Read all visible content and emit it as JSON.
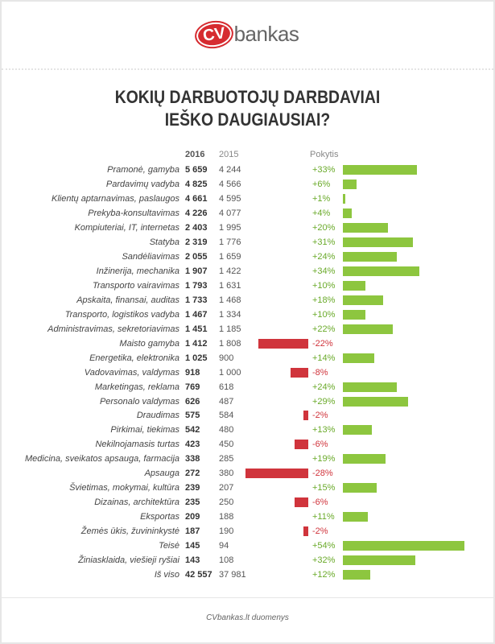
{
  "logo": {
    "mark": "CV",
    "text": "bankas"
  },
  "title_lines": [
    "KOKIŲ DARBUOTOJŲ DARBDAVIAI",
    "IEŠKO DAUGIAUSIAI?"
  ],
  "footer": "CVbankas.lt duomenys",
  "colors": {
    "positive": "#8dc63f",
    "negative": "#d0343c",
    "pos_text": "#6aaa2a",
    "neg_text": "#d0343c"
  },
  "chart_data": {
    "type": "table",
    "title": "KOKIŲ DARBUOTOJŲ DARBDAVIAI IEŠKO DAUGIAUSIAI?",
    "columns": [
      "2016",
      "2015",
      "Pokytis"
    ],
    "rows": [
      {
        "label": "Pramonė, gamyba",
        "v2016": "5 659",
        "v2015": "4 244",
        "change": 33
      },
      {
        "label": "Pardavimų vadyba",
        "v2016": "4 825",
        "v2015": "4 566",
        "change": 6
      },
      {
        "label": "Klientų aptarnavimas, paslaugos",
        "v2016": "4 661",
        "v2015": "4 595",
        "change": 1
      },
      {
        "label": "Prekyba-konsultavimas",
        "v2016": "4 226",
        "v2015": "4 077",
        "change": 4
      },
      {
        "label": "Kompiuteriai, IT, internetas",
        "v2016": "2 403",
        "v2015": "1 995",
        "change": 20
      },
      {
        "label": "Statyba",
        "v2016": "2 319",
        "v2015": "1 776",
        "change": 31
      },
      {
        "label": "Sandėliavimas",
        "v2016": "2 055",
        "v2015": "1 659",
        "change": 24
      },
      {
        "label": "Inžinerija, mechanika",
        "v2016": "1 907",
        "v2015": "1 422",
        "change": 34
      },
      {
        "label": "Transporto vairavimas",
        "v2016": "1 793",
        "v2015": "1 631",
        "change": 10
      },
      {
        "label": "Apskaita, finansai, auditas",
        "v2016": "1 733",
        "v2015": "1 468",
        "change": 18
      },
      {
        "label": "Transporto, logistikos vadyba",
        "v2016": "1 467",
        "v2015": "1 334",
        "change": 10
      },
      {
        "label": "Administravimas, sekretoriavimas",
        "v2016": "1 451",
        "v2015": "1 185",
        "change": 22
      },
      {
        "label": "Maisto gamyba",
        "v2016": "1 412",
        "v2015": "1 808",
        "change": -22
      },
      {
        "label": "Energetika, elektronika",
        "v2016": "1 025",
        "v2015": "900",
        "change": 14
      },
      {
        "label": "Vadovavimas, valdymas",
        "v2016": "918",
        "v2015": "1 000",
        "change": -8
      },
      {
        "label": "Marketingas, reklama",
        "v2016": "769",
        "v2015": "618",
        "change": 24
      },
      {
        "label": "Personalo valdymas",
        "v2016": "626",
        "v2015": "487",
        "change": 29
      },
      {
        "label": "Draudimas",
        "v2016": "575",
        "v2015": "584",
        "change": -2
      },
      {
        "label": "Pirkimai, tiekimas",
        "v2016": "542",
        "v2015": "480",
        "change": 13
      },
      {
        "label": "Nekilnojamasis turtas",
        "v2016": "423",
        "v2015": "450",
        "change": -6
      },
      {
        "label": "Medicina, sveikatos apsauga, farmacija",
        "v2016": "338",
        "v2015": "285",
        "change": 19
      },
      {
        "label": "Apsauga",
        "v2016": "272",
        "v2015": "380",
        "change": -28
      },
      {
        "label": "Švietimas, mokymai, kultūra",
        "v2016": "239",
        "v2015": "207",
        "change": 15
      },
      {
        "label": "Dizainas, architektūra",
        "v2016": "235",
        "v2015": "250",
        "change": -6
      },
      {
        "label": "Eksportas",
        "v2016": "209",
        "v2015": "188",
        "change": 11
      },
      {
        "label": "Žemės ūkis, žuvininkystė",
        "v2016": "187",
        "v2015": "190",
        "change": -2
      },
      {
        "label": "Teisė",
        "v2016": "145",
        "v2015": "94",
        "change": 54
      },
      {
        "label": "Žiniasklaida, viešieji ryšiai",
        "v2016": "143",
        "v2015": "108",
        "change": 32
      },
      {
        "label": "Iš viso",
        "v2016": "42 557",
        "v2015": "37 981",
        "change": 12
      }
    ]
  }
}
